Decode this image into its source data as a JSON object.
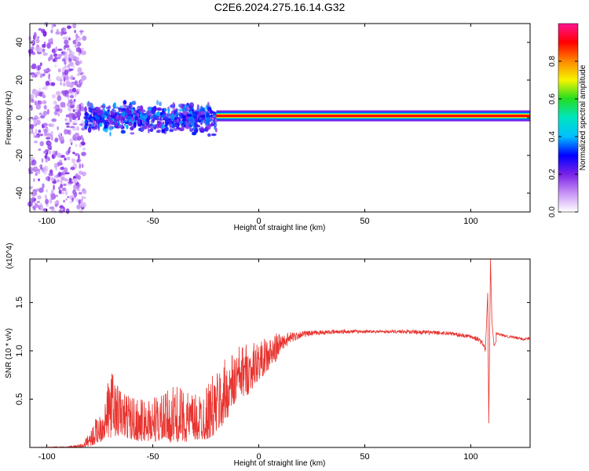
{
  "title": "C2E6.2024.275.16.14.G32",
  "chart_data": [
    {
      "type": "heatmap",
      "xlabel": "Height of straight line (km)",
      "ylabel": "Frequency (Hz)",
      "xlim": [
        -108,
        128
      ],
      "ylim": [
        -50,
        50
      ],
      "xticks": [
        -100,
        -50,
        0,
        50,
        100
      ],
      "yticks": [
        -40,
        -20,
        0,
        20,
        40
      ],
      "colorbar": {
        "label": "Normalized spectral amplitude",
        "range": [
          0,
          1
        ],
        "ticks": [
          "0.0",
          "0.2",
          "0.4",
          "0.6",
          "0.8"
        ],
        "tick_values": [
          0,
          0.2,
          0.4,
          0.6,
          0.8
        ],
        "colors": [
          "#ffffff",
          "#c792f5",
          "#7a22e8",
          "#0000ff",
          "#00bfff",
          "#00e5c0",
          "#22dd22",
          "#f5f500",
          "#ff8800",
          "#ff0000",
          "#ff1493"
        ]
      },
      "regions": [
        {
          "x_range": [
            -108,
            -82
          ],
          "freq_range": [
            -50,
            50
          ],
          "amplitude": [
            0.05,
            0.2
          ],
          "pattern": "scattered noise"
        },
        {
          "x_range": [
            -82,
            -20
          ],
          "freq_range": [
            -10,
            10
          ],
          "amplitude": [
            0.15,
            0.4
          ],
          "pattern": "clustered blobs"
        },
        {
          "x_range": [
            -20,
            128
          ],
          "freq_center": 1,
          "amplitude": 1.0,
          "pattern": "narrow carrier line"
        }
      ]
    },
    {
      "type": "line",
      "xlabel": "Height of straight line (km)",
      "ylabel": "SNR (10 * v/v)",
      "y_multiplier": "(x10^4)",
      "xlim": [
        -108,
        128
      ],
      "ylim": [
        0,
        1.95
      ],
      "xticks": [
        -100,
        -50,
        0,
        50,
        100
      ],
      "yticks": [
        "0.5",
        "1.0",
        "1.5"
      ],
      "ytick_values": [
        0.5,
        1.0,
        1.5
      ],
      "color": "#e8332e",
      "envelope": {
        "x": [
          -108,
          -90,
          -83,
          -78,
          -75,
          -72,
          -70,
          -65,
          -60,
          -55,
          -50,
          -45,
          -40,
          -35,
          -30,
          -25,
          -22,
          -18,
          -15,
          -12,
          -10,
          -5,
          0,
          5,
          10,
          15,
          20,
          30,
          40,
          50,
          60,
          70,
          80,
          90,
          100,
          104,
          106,
          107
        ],
        "low": [
          0.0,
          0.0,
          0.0,
          0.02,
          0.05,
          0.1,
          0.1,
          0.12,
          0.08,
          0.06,
          0.06,
          0.05,
          0.05,
          0.06,
          0.06,
          0.08,
          0.1,
          0.18,
          0.3,
          0.4,
          0.5,
          0.55,
          0.7,
          0.8,
          0.95,
          1.05,
          1.12,
          1.16,
          1.17,
          1.18,
          1.18,
          1.17,
          1.16,
          1.15,
          1.12,
          1.08,
          1.03,
          0.95
        ],
        "high": [
          0.0,
          0.01,
          0.04,
          0.25,
          0.4,
          0.55,
          0.85,
          0.6,
          0.55,
          0.5,
          0.55,
          0.55,
          0.65,
          0.6,
          0.55,
          0.65,
          0.75,
          0.85,
          0.95,
          1.0,
          1.05,
          1.1,
          1.1,
          1.15,
          1.2,
          1.22,
          1.22,
          1.22,
          1.23,
          1.22,
          1.22,
          1.23,
          1.22,
          1.21,
          1.18,
          1.15,
          1.1,
          1.05
        ]
      },
      "spike": {
        "x": [
          107,
          108,
          108.5,
          109,
          109.3,
          110,
          111,
          112
        ],
        "y": [
          1.05,
          1.6,
          0.25,
          1.3,
          1.95,
          1.3,
          1.05,
          1.1
        ]
      },
      "tail": {
        "x": [
          112,
          115,
          120,
          125,
          128
        ],
        "y": [
          1.18,
          1.16,
          1.14,
          1.12,
          1.13
        ]
      }
    }
  ]
}
